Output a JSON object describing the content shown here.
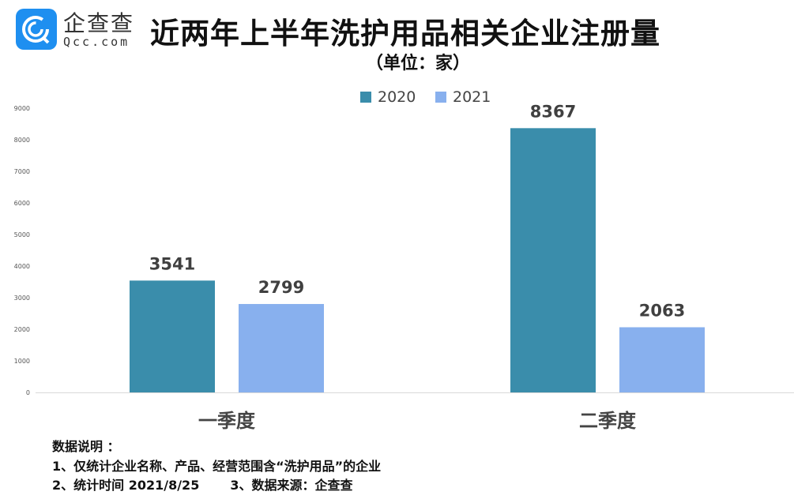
{
  "logo": {
    "cn": "企查查",
    "en": "Qcc.com"
  },
  "colors": {
    "s2020": "#3a8dab",
    "s2021": "#88b0ee"
  },
  "chart_data": {
    "type": "bar",
    "title": "近两年上半年洗护用品相关企业注册量",
    "subtitle": "（单位：家）",
    "categories": [
      "一季度",
      "二季度"
    ],
    "series": [
      {
        "name": "2020",
        "values": [
          3541,
          8367
        ]
      },
      {
        "name": "2021",
        "values": [
          2799,
          2063
        ]
      }
    ],
    "ylim": [
      0,
      9000
    ],
    "yticks": [
      "0",
      "1000",
      "2000",
      "3000",
      "4000",
      "5000",
      "6000",
      "7000",
      "8000",
      "9000"
    ],
    "legend": "top-center",
    "grid": false
  },
  "notes": {
    "heading": "数据说明 ：",
    "line1": "1、仅统计企业名称、产品、经营范围含“洗护用品”的企业",
    "line2": "2、统计时间 2021/8/25       3、数据来源：企查查"
  }
}
